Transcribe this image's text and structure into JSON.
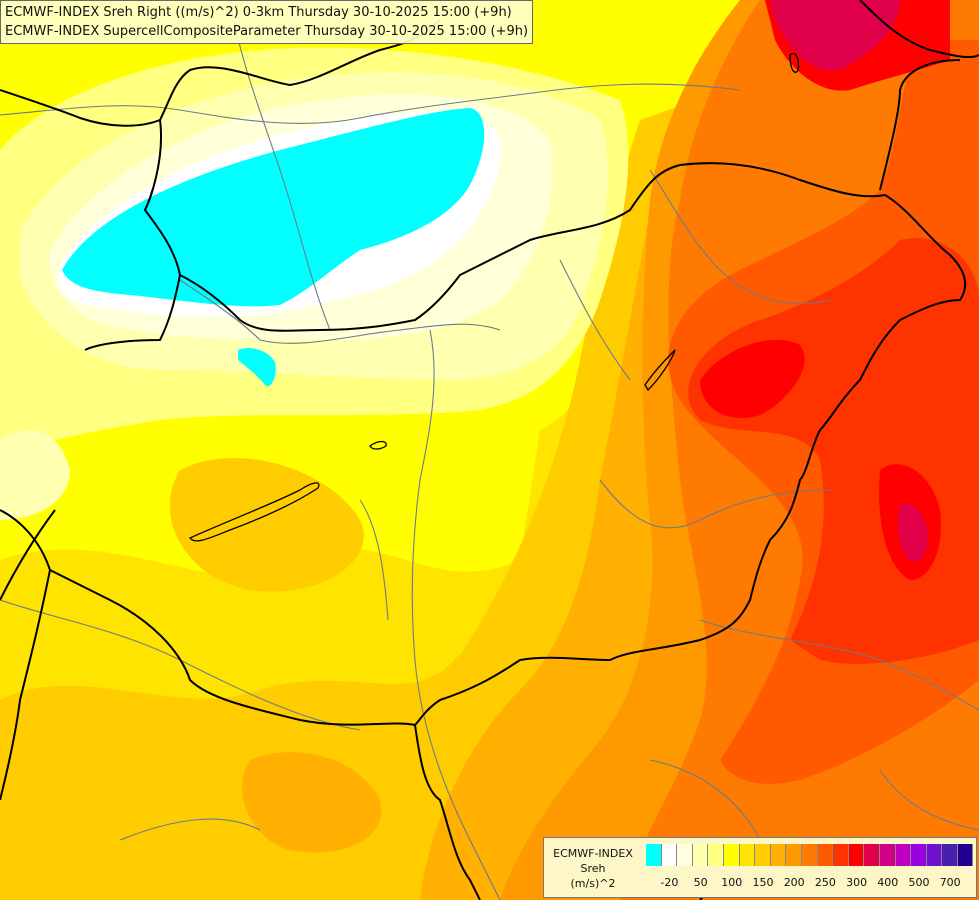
{
  "title": {
    "line1": "ECMWF-INDEX Sreh Right ((m/s)^2) 0-3km Thursday 30-10-2025 15:00 (+9h)",
    "line2": "ECMWF-INDEX SupercellCompositeParameter Thursday 30-10-2025 15:00 (+9h)"
  },
  "legend": {
    "line1": "ECMWF-INDEX",
    "line2": "Sreh",
    "line3": "(m/s)^2",
    "colors": [
      "#00ffff",
      "#ffffff",
      "#ffffe0",
      "#ffffb0",
      "#ffff80",
      "#ffff00",
      "#ffe400",
      "#ffcc00",
      "#ffb000",
      "#ff9900",
      "#ff7a00",
      "#ff5a00",
      "#ff3300",
      "#ff0000",
      "#e0004a",
      "#d00088",
      "#c000c0",
      "#9a00e0",
      "#7010d0",
      "#4820b0",
      "#200090"
    ],
    "ticks": [
      "-20",
      "50",
      "100",
      "150",
      "200",
      "250",
      "300",
      "400",
      "500",
      "700"
    ]
  },
  "colors": {
    "base": "#ffff00",
    "pale": "#ffffb0",
    "light": "#ffffd8",
    "white": "#ffffff",
    "cyan": "#00ffff",
    "gold": "#ffcc00",
    "orange": "#ff9900",
    "dark_orange": "#ff6600",
    "red": "#ff3300",
    "crimson": "#ff0000",
    "magenta": "#e0004a",
    "border": "#000000",
    "river": "#6b7c8c"
  }
}
